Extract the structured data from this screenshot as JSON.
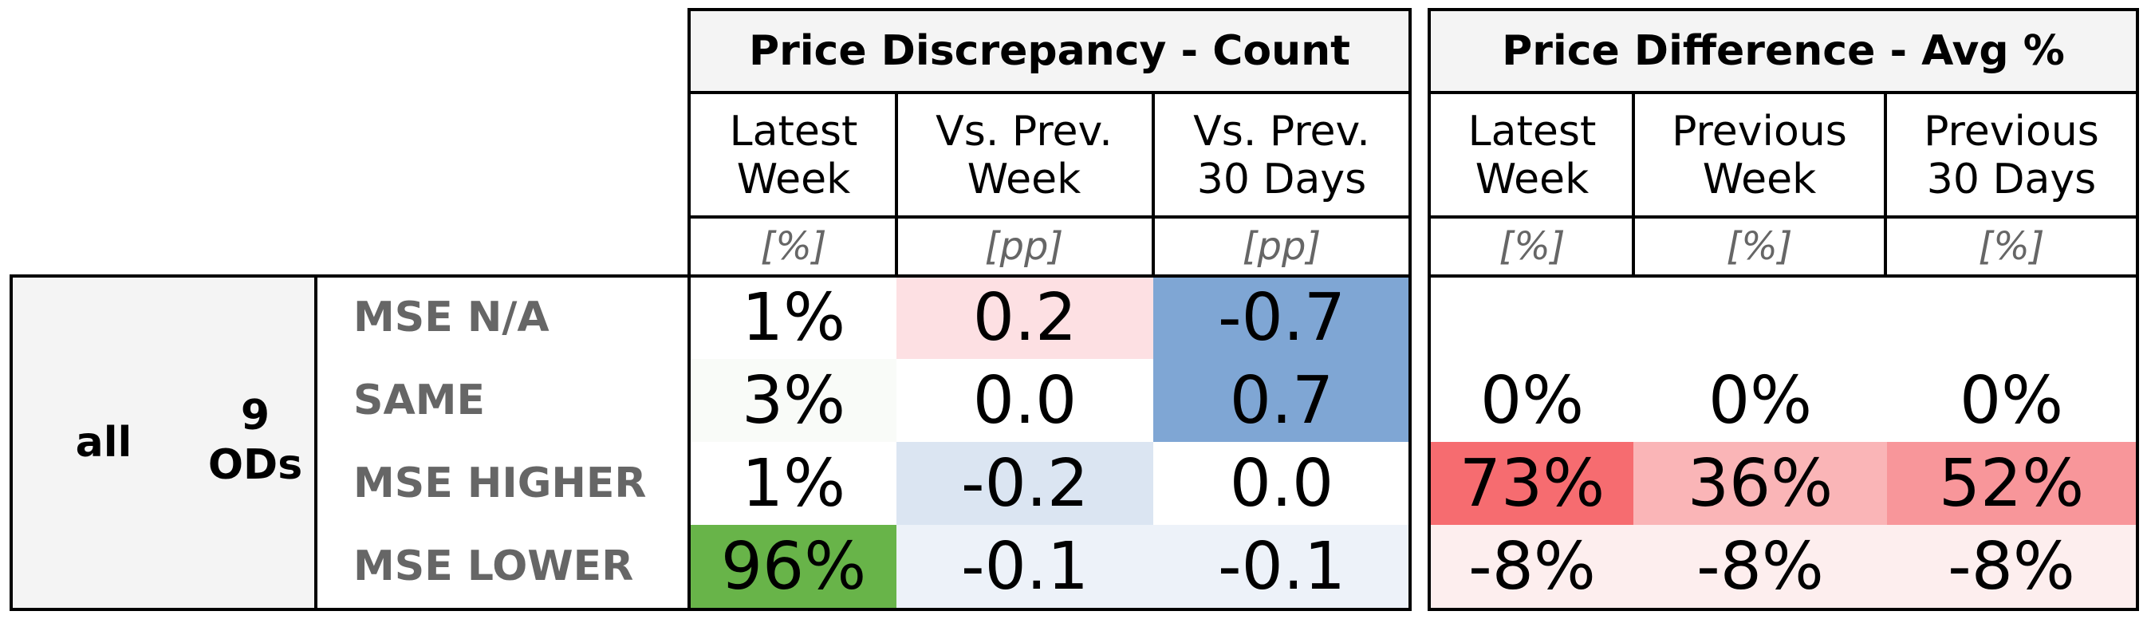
{
  "section_count": {
    "title": "Price Discrepancy - Count",
    "cols": [
      {
        "label": "Latest\nWeek",
        "unit": "[%]"
      },
      {
        "label": "Vs. Prev.\nWeek",
        "unit": "[pp]"
      },
      {
        "label": "Vs. Prev.\n30 Days",
        "unit": "[pp]"
      }
    ]
  },
  "section_avg": {
    "title": "Price Difference - Avg %",
    "cols": [
      {
        "label": "Latest\nWeek",
        "unit": "[%]"
      },
      {
        "label": "Previous\nWeek",
        "unit": "[%]"
      },
      {
        "label": "Previous\n30 Days",
        "unit": "[%]"
      }
    ]
  },
  "group": {
    "all": "all",
    "ods_count": "9",
    "ods_label": "ODs"
  },
  "rows": [
    {
      "label": "MSE N/A",
      "count": [
        {
          "v": "1%",
          "bg": "#ffffff"
        },
        {
          "v": "0.2",
          "bg": "#fde0e3"
        },
        {
          "v": "-0.7",
          "bg": "#7fa6d4"
        }
      ],
      "avg": [
        {
          "v": "",
          "bg": "#ffffff"
        },
        {
          "v": "",
          "bg": "#ffffff"
        },
        {
          "v": "",
          "bg": "#ffffff"
        }
      ]
    },
    {
      "label": "SAME",
      "count": [
        {
          "v": "3%",
          "bg": "#f9fbf8"
        },
        {
          "v": "0.0",
          "bg": "#ffffff"
        },
        {
          "v": "0.7",
          "bg": "#7fa6d4"
        }
      ],
      "avg": [
        {
          "v": "0%",
          "bg": "#ffffff"
        },
        {
          "v": "0%",
          "bg": "#ffffff"
        },
        {
          "v": "0%",
          "bg": "#ffffff"
        }
      ]
    },
    {
      "label": "MSE HIGHER",
      "count": [
        {
          "v": "1%",
          "bg": "#ffffff"
        },
        {
          "v": "-0.2",
          "bg": "#dbe5f2"
        },
        {
          "v": "0.0",
          "bg": "#ffffff"
        }
      ],
      "avg": [
        {
          "v": "73%",
          "bg": "#f66c70"
        },
        {
          "v": "36%",
          "bg": "#fab5b7"
        },
        {
          "v": "52%",
          "bg": "#f8969a"
        }
      ]
    },
    {
      "label": "MSE LOWER",
      "count": [
        {
          "v": "96%",
          "bg": "#68b449"
        },
        {
          "v": "-0.1",
          "bg": "#edf2f9"
        },
        {
          "v": "-0.1",
          "bg": "#edf2f9"
        }
      ],
      "avg": [
        {
          "v": "-8%",
          "bg": "#fdeeee"
        },
        {
          "v": "-8%",
          "bg": "#fdeeee"
        },
        {
          "v": "-8%",
          "bg": "#fdeeee"
        }
      ]
    }
  ]
}
